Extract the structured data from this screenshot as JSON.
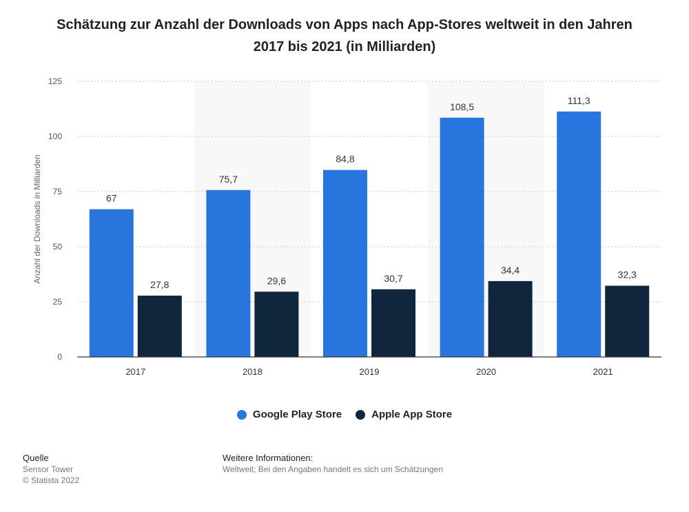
{
  "title": "Schätzung zur Anzahl der Downloads von Apps nach App-Stores weltweit in den Jahren 2017 bis 2021 (in Milliarden)",
  "chart_data": {
    "type": "bar",
    "title": "Schätzung zur Anzahl der Downloads von Apps nach App-Stores weltweit in den Jahren 2017 bis 2021 (in Milliarden)",
    "xlabel": "",
    "ylabel": "Anzahl der Downloads in Milliarden",
    "ylim": [
      0,
      125
    ],
    "yticks": [
      0,
      25,
      50,
      75,
      100,
      125
    ],
    "categories": [
      "2017",
      "2018",
      "2019",
      "2020",
      "2021"
    ],
    "series": [
      {
        "name": "Google Play Store",
        "color": "#2876dd",
        "values": [
          67,
          75.7,
          84.8,
          108.5,
          111.3
        ],
        "labels": [
          "67",
          "75,7",
          "84,8",
          "108,5",
          "111,3"
        ]
      },
      {
        "name": "Apple App Store",
        "color": "#10263d",
        "values": [
          27.8,
          29.6,
          30.7,
          34.4,
          32.3
        ],
        "labels": [
          "27,8",
          "29,6",
          "30,7",
          "34,4",
          "32,3"
        ]
      }
    ],
    "grid": true,
    "legend": "bottom-center"
  },
  "footer": {
    "source_heading": "Quelle",
    "source": "Sensor Tower",
    "copyright": "© Statista 2022",
    "info_heading": "Weitere Informationen:",
    "info": "Weltweit; Bei den Angaben handelt es sich um Schätzungen"
  }
}
